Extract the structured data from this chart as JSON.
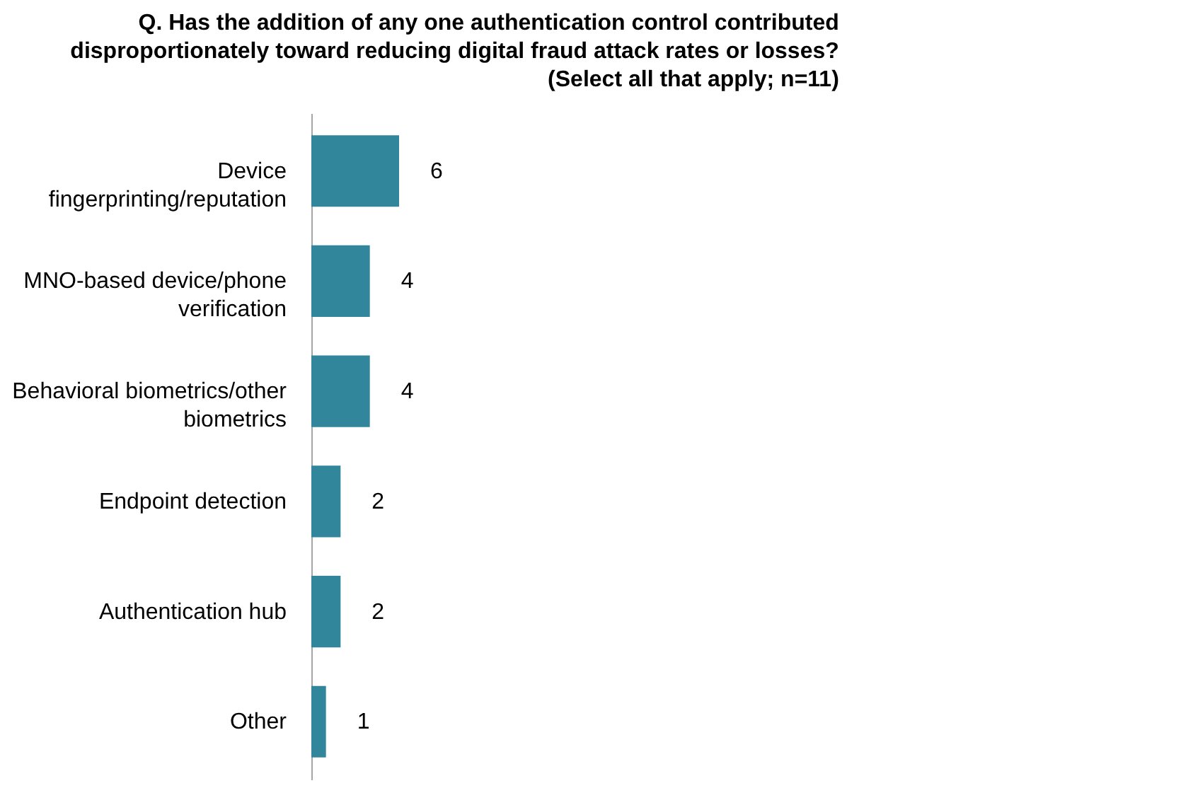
{
  "chart_data": {
    "type": "bar",
    "orientation": "horizontal",
    "title": "Q. Has the addition of any one authentication control contributed disproportionately toward reducing digital fraud attack rates or losses? (Select all that apply; n=11)",
    "categories": [
      "Device fingerprinting/reputation",
      "MNO-based device/phone verification",
      "Behavioral biometrics/other biometrics",
      "Endpoint detection",
      "Authentication hub",
      "Other"
    ],
    "values": [
      6,
      4,
      4,
      2,
      2,
      1
    ],
    "color": "#31869b",
    "data_labels": true
  }
}
